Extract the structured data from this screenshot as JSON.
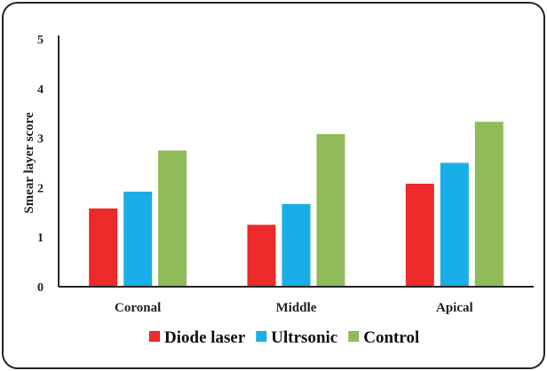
{
  "chart_data": {
    "type": "bar",
    "title": "",
    "xlabel": "",
    "ylabel": "Smear layer score",
    "ylim": [
      0,
      5
    ],
    "yticks": [
      "0",
      "1",
      "2",
      "3",
      "4",
      "5"
    ],
    "categories": [
      "Coronal",
      "Middle",
      "Apical"
    ],
    "series": [
      {
        "name": "Diode laser",
        "color": "#ee2a2a",
        "values": [
          1.58,
          1.25,
          2.08
        ]
      },
      {
        "name": "Ultrsonic",
        "color": "#1aaee8",
        "values": [
          1.92,
          1.67,
          2.5
        ]
      },
      {
        "name": "Control",
        "color": "#8fbb5a",
        "values": [
          2.75,
          3.08,
          3.33
        ]
      }
    ],
    "grid": false,
    "legend_position": "bottom"
  }
}
